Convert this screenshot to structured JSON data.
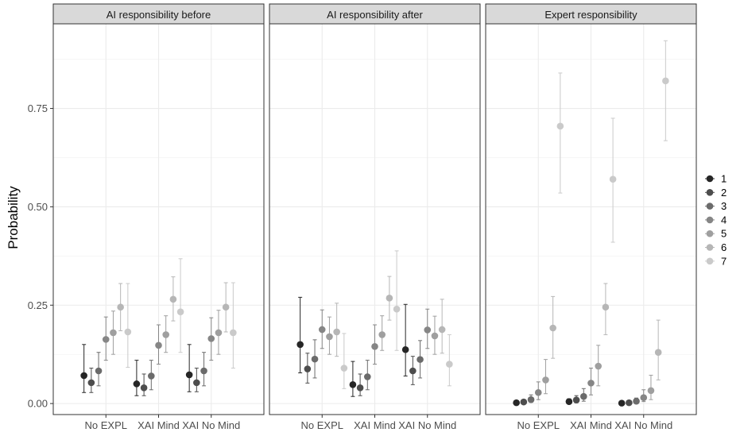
{
  "chart_data": {
    "type": "scatter",
    "ylabel": "Probability",
    "xlabel": "",
    "ylim": [
      -0.028,
      0.965
    ],
    "y_ticks": [
      0.0,
      0.25,
      0.5,
      0.75
    ],
    "y_tick_labels": [
      "0.00",
      "0.25",
      "0.50",
      "0.75"
    ],
    "categories": [
      "No EXPL",
      "XAI Mind",
      "XAI No Mind"
    ],
    "legend": [
      "1",
      "2",
      "3",
      "4",
      "5",
      "6",
      "7"
    ],
    "legend_position": "right",
    "series_colors": [
      "#262626",
      "#4d4d4d",
      "#6b6b6b",
      "#868686",
      "#9f9f9f",
      "#b6b6b6",
      "#cacaca"
    ],
    "grid": true,
    "panels": [
      {
        "title": "AI responsibility before",
        "points": [
          [
            [
              0.071,
              0.028,
              0.15
            ],
            [
              0.053,
              0.028,
              0.09
            ],
            [
              0.083,
              0.045,
              0.13
            ],
            [
              0.163,
              0.11,
              0.22
            ],
            [
              0.18,
              0.125,
              0.235
            ],
            [
              0.245,
              0.185,
              0.305
            ],
            [
              0.182,
              0.092,
              0.305
            ]
          ],
          [
            [
              0.05,
              0.02,
              0.11
            ],
            [
              0.04,
              0.02,
              0.075
            ],
            [
              0.07,
              0.035,
              0.11
            ],
            [
              0.148,
              0.1,
              0.2
            ],
            [
              0.175,
              0.13,
              0.223
            ],
            [
              0.265,
              0.21,
              0.322
            ],
            [
              0.233,
              0.13,
              0.368
            ]
          ],
          [
            [
              0.073,
              0.03,
              0.15
            ],
            [
              0.053,
              0.03,
              0.09
            ],
            [
              0.083,
              0.045,
              0.13
            ],
            [
              0.165,
              0.11,
              0.218
            ],
            [
              0.18,
              0.125,
              0.237
            ],
            [
              0.245,
              0.182,
              0.307
            ],
            [
              0.18,
              0.09,
              0.307
            ]
          ]
        ]
      },
      {
        "title": "AI responsibility after",
        "points": [
          [
            [
              0.15,
              0.078,
              0.27
            ],
            [
              0.088,
              0.052,
              0.128
            ],
            [
              0.113,
              0.065,
              0.162
            ],
            [
              0.188,
              0.14,
              0.238
            ],
            [
              0.17,
              0.125,
              0.22
            ],
            [
              0.182,
              0.12,
              0.255
            ],
            [
              0.09,
              0.038,
              0.178
            ]
          ],
          [
            [
              0.048,
              0.018,
              0.107
            ],
            [
              0.04,
              0.02,
              0.075
            ],
            [
              0.068,
              0.035,
              0.11
            ],
            [
              0.145,
              0.1,
              0.2
            ],
            [
              0.175,
              0.135,
              0.223
            ],
            [
              0.268,
              0.212,
              0.323
            ],
            [
              0.24,
              0.135,
              0.388
            ]
          ],
          [
            [
              0.137,
              0.07,
              0.252
            ],
            [
              0.083,
              0.048,
              0.12
            ],
            [
              0.112,
              0.065,
              0.16
            ],
            [
              0.187,
              0.14,
              0.24
            ],
            [
              0.172,
              0.125,
              0.222
            ],
            [
              0.188,
              0.128,
              0.265
            ],
            [
              0.1,
              0.045,
              0.175
            ]
          ]
        ]
      },
      {
        "title": "Expert responsibility",
        "points": [
          [
            [
              0.002,
              0.0,
              0.005
            ],
            [
              0.004,
              0.001,
              0.01
            ],
            [
              0.01,
              0.003,
              0.022
            ],
            [
              0.028,
              0.01,
              0.055
            ],
            [
              0.06,
              0.025,
              0.112
            ],
            [
              0.192,
              0.115,
              0.272
            ],
            [
              0.705,
              0.535,
              0.84
            ]
          ],
          [
            [
              0.005,
              0.001,
              0.012
            ],
            [
              0.009,
              0.002,
              0.02
            ],
            [
              0.018,
              0.006,
              0.038
            ],
            [
              0.052,
              0.022,
              0.09
            ],
            [
              0.095,
              0.045,
              0.148
            ],
            [
              0.245,
              0.175,
              0.305
            ],
            [
              0.57,
              0.41,
              0.725
            ]
          ],
          [
            [
              0.001,
              0.0,
              0.003
            ],
            [
              0.002,
              0.0,
              0.005
            ],
            [
              0.006,
              0.001,
              0.014
            ],
            [
              0.015,
              0.005,
              0.035
            ],
            [
              0.033,
              0.01,
              0.072
            ],
            [
              0.13,
              0.06,
              0.212
            ],
            [
              0.82,
              0.668,
              0.922
            ]
          ]
        ]
      }
    ]
  }
}
